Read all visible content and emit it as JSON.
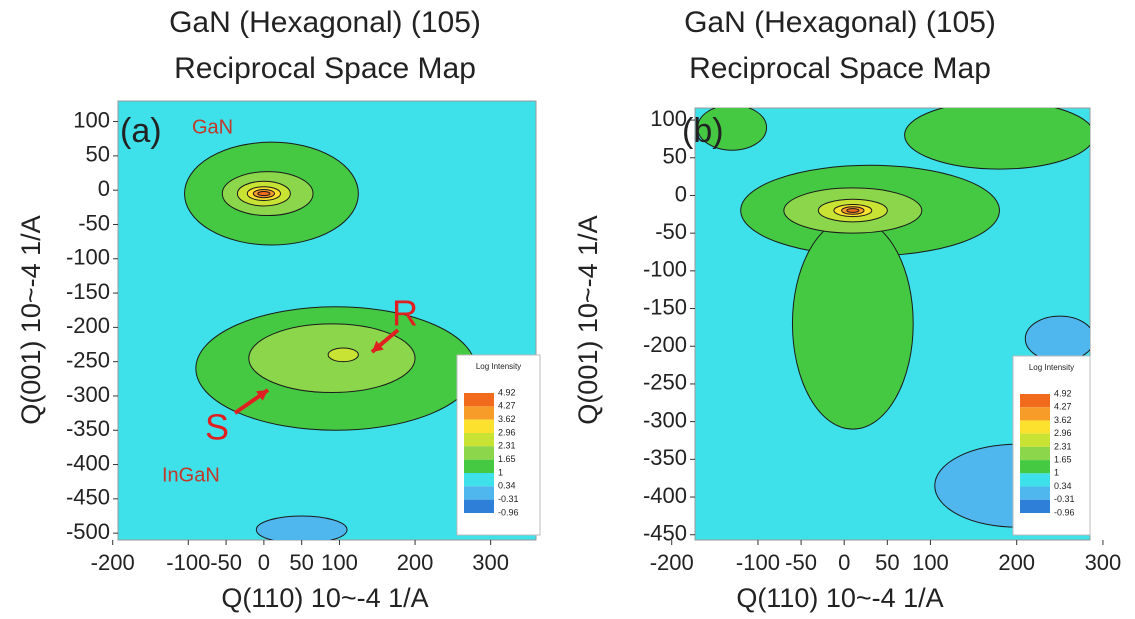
{
  "chart_data": [
    {
      "type": "contour",
      "title": "GaN (Hexagonal) (105)",
      "subtitle": "Reciprocal Space Map",
      "x_label": "Q(110) 10~-4 1/A",
      "y_label": "Q(001) 10~-4 1/A",
      "xlim": [
        -193,
        360
      ],
      "ylim": [
        -510,
        130
      ],
      "xticks": [
        -200,
        -100,
        -50,
        0,
        50,
        100,
        200,
        300
      ],
      "yticks": [
        100,
        50,
        0,
        -50,
        -100,
        -150,
        -200,
        -250,
        -300,
        -350,
        -400,
        -450,
        -500
      ],
      "background": "#3ee0ea",
      "regions": [
        {
          "color": "#45c943",
          "center": [
            10,
            -5
          ],
          "radii": [
            115,
            75
          ]
        },
        {
          "color": "#45c943",
          "center": [
            95,
            -260
          ],
          "radii": [
            185,
            90
          ]
        },
        {
          "color": "#4fb6ee",
          "center": [
            50,
            -495
          ],
          "radii": [
            60,
            20
          ]
        },
        {
          "color": "#8bd64b",
          "center": [
            5,
            -5
          ],
          "radii": [
            60,
            32
          ]
        },
        {
          "color": "#c8e334",
          "center": [
            0,
            -5
          ],
          "radii": [
            35,
            18
          ]
        },
        {
          "color": "#fde12f",
          "center": [
            0,
            -5
          ],
          "radii": [
            22,
            10
          ]
        },
        {
          "color": "#f79b29",
          "center": [
            0,
            -5
          ],
          "radii": [
            14,
            6
          ]
        },
        {
          "color": "#f26a1b",
          "center": [
            0,
            -5
          ],
          "radii": [
            8,
            3
          ]
        },
        {
          "color": "#8bd64b",
          "center": [
            90,
            -245
          ],
          "radii": [
            110,
            50
          ]
        },
        {
          "color": "#c8e334",
          "center": [
            105,
            -240
          ],
          "radii": [
            20,
            10
          ]
        }
      ],
      "colorbar": {
        "title": "Log Intensity",
        "levels": [
          4.92,
          4.27,
          3.62,
          2.96,
          2.31,
          1.65,
          1.0,
          0.34,
          -0.31,
          -0.96
        ],
        "colors": [
          "#f26a1b",
          "#f79b29",
          "#fde12f",
          "#c8e334",
          "#8bd64b",
          "#45c943",
          "#3ee0ea",
          "#4fb6ee",
          "#2d7fd8"
        ]
      },
      "annotations": [
        "(a)",
        "GaN",
        "R",
        "S",
        "InGaN"
      ]
    },
    {
      "type": "contour",
      "title": "GaN (Hexagonal) (105)",
      "subtitle": "Reciprocal Space Map",
      "x_label": "Q(110) 10~-4 1/A",
      "y_label": "Q(001) 10~-4 1/A",
      "xlim": [
        -173,
        285
      ],
      "ylim": [
        -457,
        116
      ],
      "xticks": [
        -200,
        -100,
        -50,
        0,
        50,
        100,
        200,
        300
      ],
      "yticks": [
        100,
        50,
        0,
        -50,
        -100,
        -150,
        -200,
        -250,
        -300,
        -350,
        -400,
        -450
      ],
      "background": "#3ee0ea",
      "regions": [
        {
          "color": "#4fb6ee",
          "center": [
            200,
            -385
          ],
          "radii": [
            95,
            55
          ]
        },
        {
          "color": "#4fb6ee",
          "center": [
            250,
            -190
          ],
          "radii": [
            40,
            30
          ]
        },
        {
          "color": "#45c943",
          "center": [
            30,
            -20
          ],
          "radii": [
            150,
            60
          ]
        },
        {
          "color": "#45c943",
          "center": [
            10,
            -170
          ],
          "radii": [
            70,
            140
          ]
        },
        {
          "color": "#45c943",
          "center": [
            180,
            80
          ],
          "radii": [
            110,
            45
          ]
        },
        {
          "color": "#45c943",
          "center": [
            -130,
            90
          ],
          "radii": [
            40,
            30
          ]
        },
        {
          "color": "#8bd64b",
          "center": [
            10,
            -20
          ],
          "radii": [
            80,
            30
          ]
        },
        {
          "color": "#c8e334",
          "center": [
            10,
            -20
          ],
          "radii": [
            40,
            15
          ]
        },
        {
          "color": "#fde12f",
          "center": [
            10,
            -20
          ],
          "radii": [
            22,
            8
          ]
        },
        {
          "color": "#f79b29",
          "center": [
            10,
            -20
          ],
          "radii": [
            13,
            5
          ]
        },
        {
          "color": "#f26a1b",
          "center": [
            10,
            -20
          ],
          "radii": [
            7,
            2.5
          ]
        }
      ],
      "colorbar": {
        "title": "Log Intensity",
        "levels": [
          4.92,
          4.27,
          3.62,
          2.96,
          2.31,
          1.65,
          1.0,
          0.34,
          -0.31,
          -0.96
        ],
        "colors": [
          "#f26a1b",
          "#f79b29",
          "#fde12f",
          "#c8e334",
          "#8bd64b",
          "#45c943",
          "#3ee0ea",
          "#4fb6ee",
          "#2d7fd8"
        ]
      },
      "annotations": [
        "(b)"
      ]
    }
  ]
}
